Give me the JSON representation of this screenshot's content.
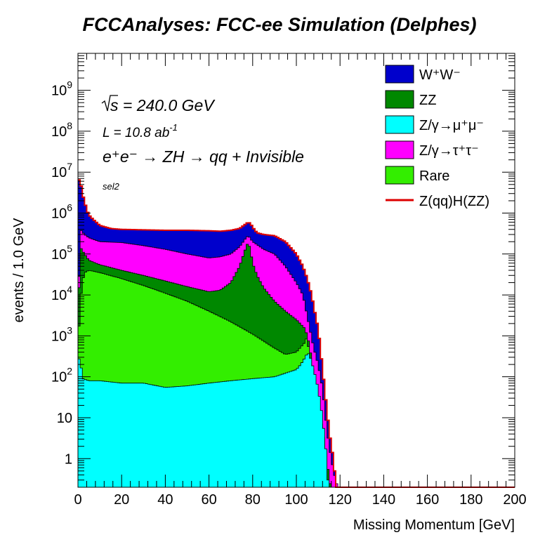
{
  "page": {
    "title": "FCCAnalyses: FCC-ee Simulation (Delphes)"
  },
  "chart_data": {
    "type": "area",
    "title": "FCCAnalyses: FCC-ee Simulation (Delphes)",
    "xlabel": "Missing Momentum [GeV]",
    "ylabel": "events / 1.0 GeV",
    "xlim": [
      0,
      200
    ],
    "ylog": true,
    "ylim": [
      0.2,
      8000000000
    ],
    "xticks": [
      0,
      20,
      40,
      60,
      80,
      100,
      120,
      140,
      160,
      180,
      200
    ],
    "yticks": [
      {
        "value": 1,
        "base": "1",
        "exp": ""
      },
      {
        "value": 10,
        "base": "10",
        "exp": ""
      },
      {
        "value": 100,
        "base": "10",
        "exp": "2"
      },
      {
        "value": 1000,
        "base": "10",
        "exp": "3"
      },
      {
        "value": 10000,
        "base": "10",
        "exp": "4"
      },
      {
        "value": 100000,
        "base": "10",
        "exp": "5"
      },
      {
        "value": 1000000,
        "base": "10",
        "exp": "6"
      },
      {
        "value": 10000000,
        "base": "10",
        "exp": "7"
      },
      {
        "value": 100000000,
        "base": "10",
        "exp": "8"
      },
      {
        "value": 1000000000,
        "base": "10",
        "exp": "9"
      }
    ],
    "annotations": {
      "sqrt_s": "s = 240.0 GeV",
      "lumi_text": "L = 10.8 ab",
      "lumi_exp": "-1",
      "process": "e⁺e⁻ → ZH → qq + Invisible",
      "selection": "sel2"
    },
    "legend_position": "top-right",
    "colors": {
      "WW": "#0000cc",
      "ZZ": "#008800",
      "Zmumu": "#00ffff",
      "Ztautau": "#ff00ff",
      "Rare": "#33ee00",
      "signal": "#dd0000"
    },
    "stack_order": [
      "Zmumu",
      "Rare",
      "ZZ",
      "Ztautau",
      "WW"
    ],
    "legend": [
      {
        "key": "WW",
        "label": "W⁺W⁻",
        "style": "box"
      },
      {
        "key": "ZZ",
        "label": "ZZ",
        "style": "box"
      },
      {
        "key": "Zmumu",
        "label": "Z/γ→μ⁺μ⁻",
        "style": "box"
      },
      {
        "key": "Ztautau",
        "label": "Z/γ→τ⁺τ⁻",
        "style": "box"
      },
      {
        "key": "Rare",
        "label": "Rare",
        "style": "box"
      },
      {
        "key": "signal",
        "label": "Z(qq)H(ZZ)",
        "style": "line"
      }
    ],
    "series": [
      {
        "key": "Zmumu",
        "label": "Z/γ→μ⁺μ⁻",
        "cumulative": true,
        "points": [
          [
            0,
            250
          ],
          [
            1,
            300
          ],
          [
            2,
            90
          ],
          [
            5,
            80
          ],
          [
            10,
            80
          ],
          [
            20,
            70
          ],
          [
            30,
            70
          ],
          [
            40,
            55
          ],
          [
            50,
            60
          ],
          [
            60,
            70
          ],
          [
            70,
            80
          ],
          [
            80,
            90
          ],
          [
            90,
            100
          ],
          [
            100,
            150
          ],
          [
            102,
            200
          ],
          [
            104,
            300
          ],
          [
            105,
            380
          ],
          [
            106,
            350
          ],
          [
            108,
            150
          ],
          [
            110,
            50
          ],
          [
            112,
            10
          ],
          [
            113,
            3
          ],
          [
            114,
            1
          ],
          [
            114.5,
            0.3
          ],
          [
            115,
            0.2
          ],
          [
            200,
            0.2
          ]
        ]
      },
      {
        "key": "Rare",
        "label": "Rare",
        "cumulative": true,
        "points": [
          [
            0,
            500
          ],
          [
            1,
            6000
          ],
          [
            2,
            20000
          ],
          [
            3,
            35000
          ],
          [
            5,
            40000
          ],
          [
            10,
            35000
          ],
          [
            20,
            25000
          ],
          [
            30,
            17000
          ],
          [
            40,
            11000
          ],
          [
            50,
            7000
          ],
          [
            60,
            4000
          ],
          [
            70,
            2200
          ],
          [
            80,
            1100
          ],
          [
            90,
            500
          ],
          [
            95,
            350
          ],
          [
            100,
            400
          ],
          [
            104,
            700
          ],
          [
            105,
            1000
          ],
          [
            106,
            300
          ],
          [
            108,
            60
          ],
          [
            110,
            12
          ],
          [
            112,
            3
          ],
          [
            113,
            1
          ],
          [
            114,
            0.3
          ],
          [
            115,
            0.2
          ],
          [
            200,
            0.2
          ]
        ]
      },
      {
        "key": "ZZ",
        "label": "ZZ",
        "cumulative": true,
        "points": [
          [
            0,
            1500
          ],
          [
            1,
            150000
          ],
          [
            3,
            100000
          ],
          [
            5,
            70000
          ],
          [
            10,
            55000
          ],
          [
            20,
            40000
          ],
          [
            30,
            30000
          ],
          [
            40,
            22000
          ],
          [
            50,
            16000
          ],
          [
            60,
            12000
          ],
          [
            65,
            13000
          ],
          [
            70,
            20000
          ],
          [
            74,
            50000
          ],
          [
            77,
            150000
          ],
          [
            78,
            200000
          ],
          [
            79,
            120000
          ],
          [
            80,
            60000
          ],
          [
            82,
            30000
          ],
          [
            85,
            15000
          ],
          [
            90,
            7000
          ],
          [
            95,
            4000
          ],
          [
            100,
            2500
          ],
          [
            104,
            1500
          ],
          [
            106,
            600
          ],
          [
            108,
            100
          ],
          [
            110,
            20
          ],
          [
            112,
            5
          ],
          [
            114,
            1
          ],
          [
            115,
            0.3
          ],
          [
            116,
            0.2
          ],
          [
            200,
            0.2
          ]
        ]
      },
      {
        "key": "Ztautau",
        "label": "Z/γ→τ⁺τ⁻",
        "cumulative": true,
        "points": [
          [
            0,
            2000
          ],
          [
            1,
            400000
          ],
          [
            3,
            300000
          ],
          [
            5,
            250000
          ],
          [
            10,
            200000
          ],
          [
            20,
            190000
          ],
          [
            30,
            160000
          ],
          [
            40,
            130000
          ],
          [
            50,
            100000
          ],
          [
            60,
            80000
          ],
          [
            65,
            85000
          ],
          [
            70,
            100000
          ],
          [
            74,
            150000
          ],
          [
            77,
            250000
          ],
          [
            78,
            280000
          ],
          [
            80,
            200000
          ],
          [
            85,
            130000
          ],
          [
            90,
            100000
          ],
          [
            95,
            50000
          ],
          [
            100,
            20000
          ],
          [
            103,
            10000
          ],
          [
            105,
            3000
          ],
          [
            108,
            500
          ],
          [
            110,
            200
          ],
          [
            112,
            50
          ],
          [
            113,
            15
          ],
          [
            114,
            5
          ],
          [
            115,
            2
          ],
          [
            116,
            1
          ],
          [
            117,
            0.5
          ],
          [
            118,
            0.3
          ],
          [
            119,
            0.2
          ],
          [
            200,
            0.2
          ]
        ]
      },
      {
        "key": "WW",
        "label": "W⁺W⁻",
        "cumulative": true,
        "points": [
          [
            0,
            6000000
          ],
          [
            1,
            7000000
          ],
          [
            2,
            3000000
          ],
          [
            3,
            2000000
          ],
          [
            4,
            1200000
          ],
          [
            5,
            900000
          ],
          [
            7,
            700000
          ],
          [
            10,
            500000
          ],
          [
            15,
            420000
          ],
          [
            20,
            400000
          ],
          [
            30,
            390000
          ],
          [
            40,
            380000
          ],
          [
            50,
            380000
          ],
          [
            60,
            370000
          ],
          [
            65,
            360000
          ],
          [
            70,
            380000
          ],
          [
            74,
            420000
          ],
          [
            77,
            550000
          ],
          [
            78,
            600000
          ],
          [
            79,
            560000
          ],
          [
            80,
            450000
          ],
          [
            82,
            330000
          ],
          [
            85,
            300000
          ],
          [
            90,
            280000
          ],
          [
            95,
            200000
          ],
          [
            100,
            100000
          ],
          [
            103,
            50000
          ],
          [
            105,
            25000
          ],
          [
            107,
            10000
          ],
          [
            108,
            5000
          ],
          [
            110,
            1500
          ],
          [
            111,
            500
          ],
          [
            112,
            150
          ],
          [
            113,
            50
          ],
          [
            114,
            15
          ],
          [
            115,
            5
          ],
          [
            116,
            2
          ],
          [
            117,
            1
          ],
          [
            117.5,
            0.5
          ],
          [
            118,
            0.3
          ],
          [
            118.5,
            0.2
          ],
          [
            200,
            0.2
          ]
        ]
      }
    ],
    "signal_line": {
      "key": "signal",
      "label": "Z(qq)H(ZZ)",
      "follows": "WW"
    }
  }
}
